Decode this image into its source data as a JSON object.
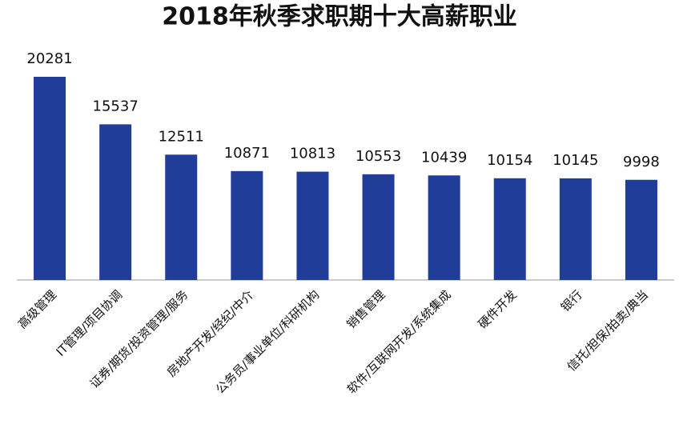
{
  "chart_data": {
    "type": "bar",
    "title": "2018年秋季求职期十大高薪职业",
    "categories": [
      "高级管理",
      "IT管理/项目协调",
      "证券/期货/投资管理/服务",
      "房地产开发/经纪/中介",
      "公务员/事业单位/科研机构",
      "销售管理",
      "软件/互联网开发/系统集成",
      "硬件开发",
      "银行",
      "信托/担保/拍卖/典当"
    ],
    "values": [
      20281,
      15537,
      12511,
      10871,
      10813,
      10553,
      10439,
      10154,
      10145,
      9998
    ],
    "color": "#1f3d99"
  }
}
